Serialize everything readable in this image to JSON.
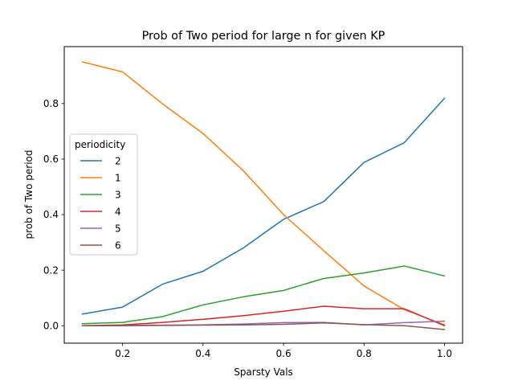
{
  "chart_data": {
    "type": "line",
    "title": "Prob of Two period for large n for given KP",
    "xlabel": "Sparsty Vals",
    "ylabel": "prob of Two period",
    "xlim": [
      0.055,
      1.045
    ],
    "ylim": [
      -0.063,
      1.005
    ],
    "x": [
      0.1,
      0.2,
      0.3,
      0.4,
      0.5,
      0.6,
      0.7,
      0.8,
      0.9,
      1.0
    ],
    "xticks": [
      0.2,
      0.4,
      0.6,
      0.8,
      1.0
    ],
    "xtick_labels": [
      "0.2",
      "0.4",
      "0.6",
      "0.8",
      "1.0"
    ],
    "yticks": [
      0.0,
      0.2,
      0.4,
      0.6,
      0.8
    ],
    "ytick_labels": [
      "0.0",
      "0.2",
      "0.4",
      "0.6",
      "0.8"
    ],
    "grid": false,
    "legend": {
      "title": "periodicity",
      "position": "center-left"
    },
    "series": [
      {
        "name": "2",
        "color": "#1f77b4",
        "values": [
          0.042,
          0.067,
          0.15,
          0.196,
          0.28,
          0.383,
          0.447,
          0.588,
          0.659,
          0.819
        ]
      },
      {
        "name": "1",
        "color": "#ff7f0e",
        "values": [
          0.95,
          0.914,
          0.798,
          0.692,
          0.558,
          0.4,
          0.27,
          0.143,
          0.058,
          0.003
        ]
      },
      {
        "name": "3",
        "color": "#2ca02c",
        "values": [
          0.007,
          0.012,
          0.033,
          0.075,
          0.104,
          0.127,
          0.17,
          0.19,
          0.215,
          0.179
        ]
      },
      {
        "name": "4",
        "color": "#d62728",
        "values": [
          0.0,
          0.003,
          0.012,
          0.023,
          0.036,
          0.052,
          0.07,
          0.061,
          0.061,
          0.0
        ]
      },
      {
        "name": "5",
        "color": "#9467bd",
        "values": [
          0.0,
          0.001,
          0.002,
          0.003,
          0.006,
          0.011,
          0.012,
          0.003,
          0.011,
          0.016
        ]
      },
      {
        "name": "6",
        "color": "#8c564b",
        "values": [
          0.0,
          0.0,
          0.001,
          0.002,
          0.003,
          0.005,
          0.01,
          0.004,
          0.0,
          -0.014
        ]
      }
    ]
  }
}
